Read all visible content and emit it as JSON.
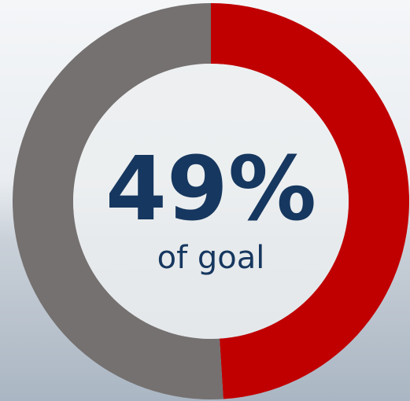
{
  "chart_data": {
    "type": "donut",
    "categories": [
      null,
      null
    ],
    "values": [
      49,
      51
    ],
    "value_labels": [
      "49%",
      null
    ],
    "colors": [
      "#c00000",
      "#757170"
    ],
    "annotation": "of goal"
  }
}
